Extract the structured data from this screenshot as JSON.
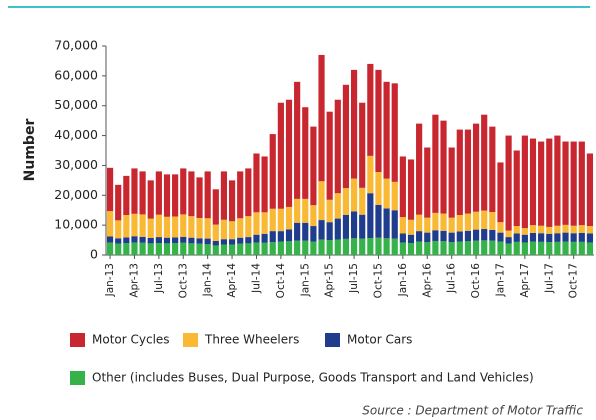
{
  "chart_data": {
    "type": "stacked_bar",
    "y_label": "Number",
    "source": "Source : Department of Motor Traffic",
    "categories": [
      "Jan-13",
      null,
      null,
      "Apr-13",
      null,
      null,
      "Jul-13",
      null,
      null,
      "Oct-13",
      null,
      null,
      "Jan-14",
      null,
      null,
      "Apr-14",
      null,
      null,
      "Jul-14",
      null,
      null,
      "Oct-14",
      null,
      null,
      "Jan-15",
      null,
      null,
      "Apr-15",
      null,
      null,
      "Jul-15",
      null,
      null,
      "Oct-15",
      null,
      null,
      "Jan-16",
      null,
      null,
      "Apr-16",
      null,
      null,
      "Jul-16",
      null,
      null,
      "Oct-16",
      null,
      null,
      "Jan-17",
      null,
      null,
      "Apr-17",
      null,
      null,
      "Jul-17",
      null,
      null,
      "Oct-17",
      null,
      null
    ],
    "series": [
      {
        "name": "Other (includes Buses, Dual Purpose, Goods Transport and Land Vehicles)",
        "color": "#35b34a",
        "values": [
          4200,
          3800,
          4000,
          4200,
          4100,
          3900,
          4000,
          3900,
          4000,
          4100,
          3900,
          3800,
          3600,
          3200,
          3500,
          3500,
          3800,
          3900,
          4200,
          4100,
          4300,
          4500,
          4600,
          4800,
          4800,
          4500,
          5200,
          5000,
          5200,
          5400,
          5600,
          5500,
          5700,
          5800,
          5600,
          5500,
          4200,
          4000,
          4500,
          4300,
          4700,
          4600,
          4300,
          4500,
          4600,
          4800,
          4900,
          4800,
          4500,
          3800,
          4400,
          4200,
          4500,
          4400,
          4300,
          4400,
          4500,
          4400,
          4400,
          4200
        ]
      },
      {
        "name": "Motor Cars",
        "color": "#1f3d8c",
        "values": [
          2000,
          1800,
          1900,
          2100,
          2000,
          1800,
          2000,
          1900,
          1900,
          2000,
          1900,
          1800,
          1900,
          1500,
          1800,
          1800,
          2000,
          2100,
          2600,
          3000,
          3700,
          3500,
          4000,
          6000,
          6000,
          5200,
          6500,
          6000,
          7000,
          8000,
          9000,
          8000,
          15000,
          11000,
          10000,
          9500,
          3000,
          2800,
          3500,
          3200,
          3600,
          3500,
          3200,
          3400,
          3500,
          3700,
          3800,
          3600,
          3000,
          2200,
          2800,
          2600,
          2900,
          2900,
          2800,
          2900,
          3000,
          2900,
          3000,
          3000
        ]
      },
      {
        "name": "Three Wheelers",
        "color": "#f9b934",
        "values": [
          8500,
          6000,
          7500,
          7500,
          7500,
          6500,
          7500,
          7000,
          7000,
          7500,
          7200,
          6800,
          6800,
          5500,
          6500,
          6000,
          6500,
          7000,
          7500,
          7200,
          7500,
          7500,
          7500,
          8000,
          8000,
          7000,
          13000,
          7500,
          8500,
          9000,
          11000,
          9000,
          12500,
          11000,
          10000,
          9500,
          5500,
          5000,
          5500,
          5000,
          5800,
          5800,
          5000,
          5500,
          5800,
          6000,
          6200,
          6000,
          3500,
          2200,
          2500,
          2200,
          2600,
          2500,
          2300,
          2500,
          2600,
          2500,
          2600,
          2500
        ]
      },
      {
        "name": "Motor Cycles",
        "color": "#c8272f",
        "values": [
          14500,
          11900,
          13100,
          15200,
          14400,
          12800,
          14500,
          14200,
          14100,
          15400,
          15000,
          13600,
          15700,
          11800,
          16200,
          13700,
          15700,
          16000,
          19700,
          18700,
          25000,
          35500,
          35900,
          39200,
          30700,
          26300,
          42300,
          29500,
          31300,
          34600,
          36400,
          28500,
          30800,
          34200,
          32400,
          33000,
          20300,
          20200,
          30500,
          23500,
          32900,
          31100,
          23500,
          28600,
          28100,
          29500,
          32100,
          28600,
          20000,
          31800,
          25300,
          31000,
          29000,
          28200,
          29600,
          30200,
          27900,
          28200,
          28000,
          24300
        ]
      }
    ],
    "ylim": [
      0,
      70000
    ],
    "yticks": [
      {
        "value": 0,
        "label": "0"
      },
      {
        "value": 10000,
        "label": "10,000"
      },
      {
        "value": 20000,
        "label": "20,000"
      },
      {
        "value": 30000,
        "label": "30,000"
      },
      {
        "value": 40000,
        "label": "40,000"
      },
      {
        "value": 50000,
        "label": "50,000"
      },
      {
        "value": 60000,
        "label": "60,000"
      },
      {
        "value": 70000,
        "label": "70,000"
      }
    ]
  }
}
